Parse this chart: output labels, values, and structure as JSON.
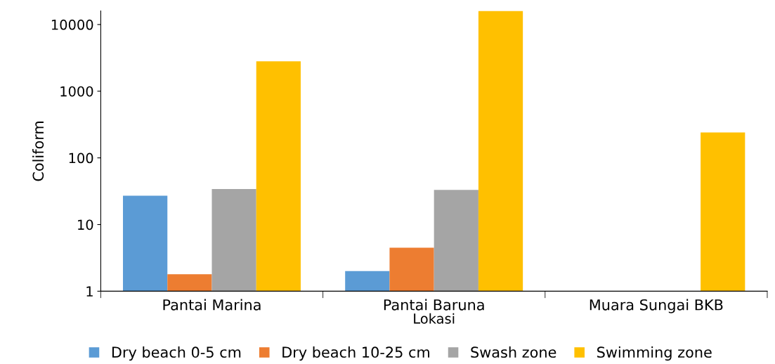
{
  "chart_data": {
    "type": "bar",
    "xlabel": "Lokasi",
    "ylabel": "Coliform",
    "categories": [
      "Pantai Marina",
      "Pantai Baruna",
      "Muara Sungai BKB"
    ],
    "series": [
      {
        "name": "Dry beach 0-5 cm",
        "color": "#5b9bd5",
        "values": [
          27,
          2.0,
          null
        ]
      },
      {
        "name": "Dry beach 10-25 cm",
        "color": "#ed7d31",
        "values": [
          1.8,
          4.5,
          null
        ]
      },
      {
        "name": "Swash zone",
        "color": "#a5a5a5",
        "values": [
          34,
          33,
          null
        ]
      },
      {
        "name": "Swimming zone",
        "color": "#ffc000",
        "values": [
          2800,
          16000,
          240
        ]
      }
    ],
    "log": true,
    "ylim": [
      1,
      16000
    ],
    "yticks": [
      1,
      10,
      100,
      1000,
      10000
    ],
    "grid": false,
    "legend": "bottom"
  }
}
